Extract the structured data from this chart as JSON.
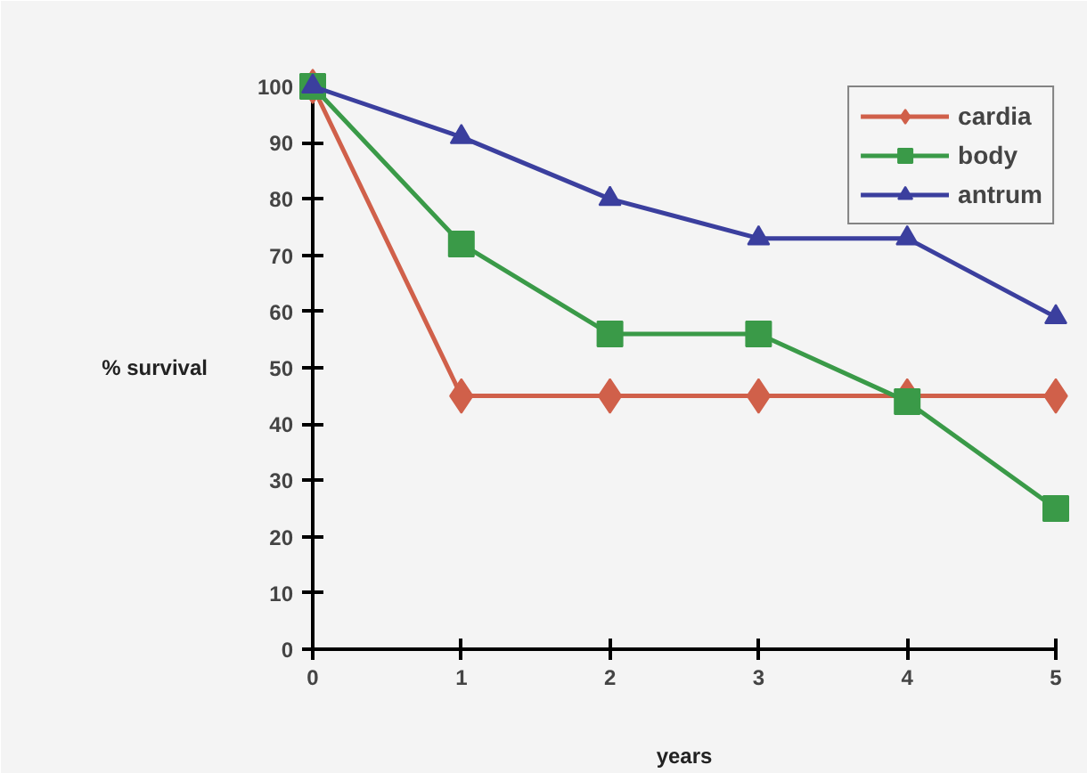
{
  "chart_data": {
    "type": "line",
    "xlabel": "years",
    "ylabel": "% survival",
    "x": [
      0,
      1,
      2,
      3,
      4,
      5
    ],
    "series": [
      {
        "name": "cardia",
        "color": "#d0604a",
        "marker": "diamond",
        "values": [
          100,
          45,
          45,
          45,
          45,
          45
        ]
      },
      {
        "name": "body",
        "color": "#3a9a48",
        "marker": "square",
        "values": [
          100,
          72,
          56,
          56,
          44,
          25
        ]
      },
      {
        "name": "antrum",
        "color": "#3b3f9e",
        "marker": "triangle",
        "values": [
          100,
          91,
          80,
          73,
          73,
          59
        ]
      }
    ],
    "xlim": [
      0,
      5
    ],
    "xticks": [
      0,
      1,
      2,
      3,
      4,
      5
    ],
    "ylim": [
      0,
      100
    ],
    "yticks": [
      0,
      10,
      20,
      30,
      40,
      50,
      60,
      70,
      80,
      90,
      100
    ],
    "grid": false,
    "legend": "top right",
    "line_style": "solid"
  }
}
